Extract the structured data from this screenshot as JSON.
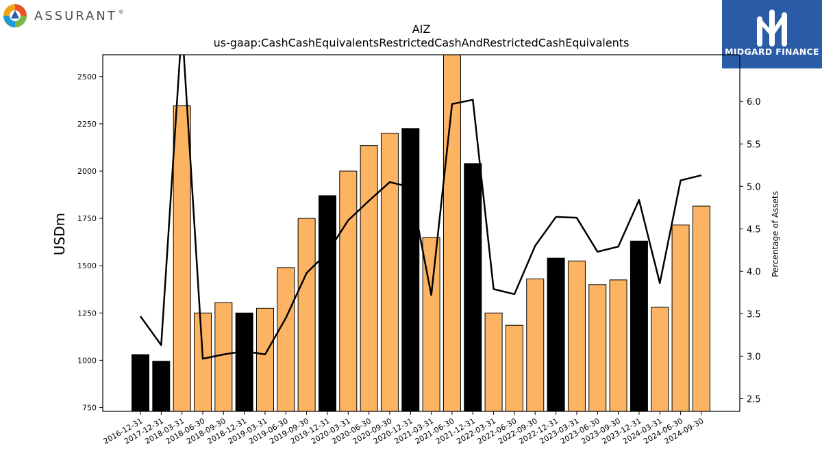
{
  "brands": {
    "left_logo": "ASSURANT",
    "left_logo_mark": "®",
    "right_logo": "MIDGARD FINANCE"
  },
  "colors": {
    "bar_highlight": "#000000",
    "bar_normal": "#fdb462",
    "line": "#000000",
    "right_logo_bg": "#2b5ca8"
  },
  "chart_data": {
    "type": "bar",
    "title": "AIZ",
    "subtitle": "us-gaap:CashCashEquivalentsRestrictedCashAndRestrictedCashEquivalents",
    "ylabel": "USDm",
    "y2label": "Percentage of Assets",
    "ylim": [
      730,
      2615
    ],
    "y2lim": [
      2.35,
      6.55
    ],
    "yticks": [
      750,
      1000,
      1250,
      1500,
      1750,
      2000,
      2250,
      2500
    ],
    "y2ticks": [
      "2.5",
      "3.0",
      "3.5",
      "4.0",
      "4.5",
      "5.0",
      "5.5",
      "6.0"
    ],
    "categories": [
      "2016-12-31",
      "2017-12-31",
      "2018-03-31",
      "2018-06-30",
      "2018-09-30",
      "2018-12-31",
      "2019-03-31",
      "2019-06-30",
      "2019-09-30",
      "2019-12-31",
      "2020-03-31",
      "2020-06-30",
      "2020-09-30",
      "2020-12-31",
      "2021-03-31",
      "2021-06-30",
      "2021-12-31",
      "2022-03-31",
      "2022-06-30",
      "2022-09-30",
      "2022-12-31",
      "2023-03-31",
      "2023-06-30",
      "2023-09-30",
      "2023-12-31",
      "2024-03-31",
      "2024-06-30",
      "2024-09-30"
    ],
    "series": [
      {
        "kind": "bar",
        "values": [
          1030,
          995,
          2345,
          1250,
          1305,
          1250,
          1275,
          1490,
          1750,
          1870,
          2000,
          2135,
          2200,
          2225,
          1650,
          2620,
          2040,
          1250,
          1185,
          1430,
          1540,
          1525,
          1400,
          1425,
          1630,
          1280,
          1715,
          1815
        ],
        "highlight": [
          true,
          true,
          false,
          false,
          false,
          true,
          false,
          false,
          false,
          true,
          false,
          false,
          false,
          true,
          false,
          false,
          true,
          false,
          false,
          false,
          true,
          false,
          false,
          false,
          true,
          false,
          false,
          false
        ]
      },
      {
        "kind": "line",
        "axis": "right",
        "values": [
          3.47,
          3.13,
          6.9,
          2.97,
          3.02,
          3.06,
          3.02,
          3.45,
          3.98,
          4.22,
          4.6,
          4.83,
          5.05,
          4.99,
          3.72,
          5.97,
          6.02,
          3.79,
          3.73,
          4.3,
          4.64,
          4.63,
          4.23,
          4.29,
          4.84,
          3.86,
          5.07,
          5.13
        ]
      }
    ]
  }
}
